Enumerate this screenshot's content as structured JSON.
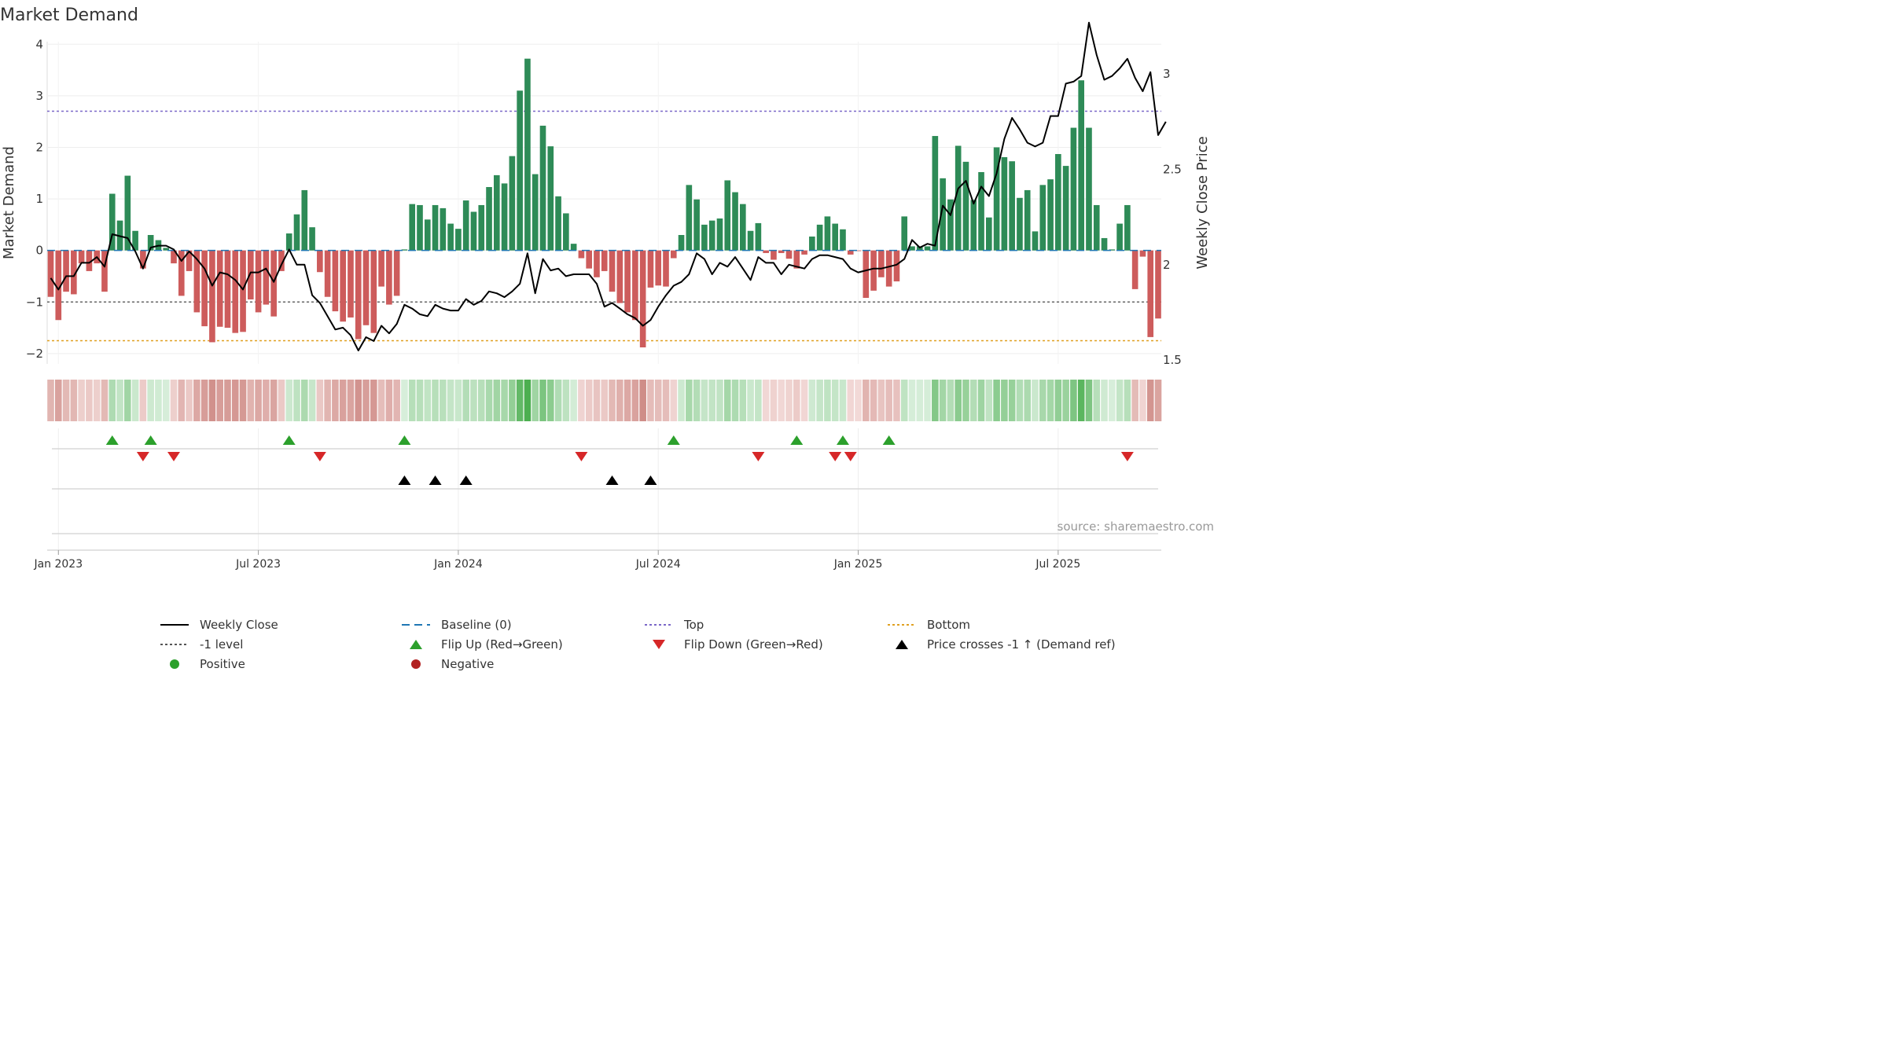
{
  "chart_data": {
    "type": "bar",
    "title": "Market Demand",
    "ylabel": "Market Demand",
    "y2label": "Weekly Close Price",
    "ylim": [
      -2.2,
      4.05
    ],
    "y2lim": [
      1.48,
      3.17
    ],
    "yticks": [
      4,
      3,
      2,
      1,
      0,
      -1,
      -2
    ],
    "ytick_labels": [
      "4",
      "3",
      "2",
      "1",
      "0",
      "−1",
      "−2"
    ],
    "y2ticks": [
      3,
      2.5,
      2,
      1.5
    ],
    "y2tick_labels": [
      "3",
      "2.5",
      "2",
      "1.5"
    ],
    "x_ticks": [
      {
        "label": "Jan 2023",
        "week": 1
      },
      {
        "label": "Jul 2023",
        "week": 27
      },
      {
        "label": "Jan 2024",
        "week": 53
      },
      {
        "label": "Jul 2024",
        "week": 79
      },
      {
        "label": "Jan 2025",
        "week": 105
      },
      {
        "label": "Jul 2025",
        "week": 131
      }
    ],
    "levels": {
      "top": 2.7,
      "minus_one": -1,
      "bottom": -1.75,
      "baseline": 0
    },
    "demand": [
      -0.9,
      -1.35,
      -0.8,
      -0.85,
      -0.25,
      -0.4,
      -0.25,
      -0.8,
      1.1,
      0.58,
      1.45,
      0.38,
      -0.35,
      0.3,
      0.2,
      0.05,
      -0.25,
      -0.88,
      -0.4,
      -1.2,
      -1.47,
      -1.78,
      -1.48,
      -1.5,
      -1.6,
      -1.58,
      -0.95,
      -1.2,
      -1.05,
      -1.28,
      -0.4,
      0.33,
      0.7,
      1.17,
      0.45,
      -0.42,
      -0.9,
      -1.18,
      -1.38,
      -1.3,
      -1.72,
      -1.45,
      -1.6,
      -0.7,
      -1.05,
      -0.88,
      0.02,
      0.9,
      0.88,
      0.6,
      0.88,
      0.82,
      0.52,
      0.42,
      0.97,
      0.75,
      0.88,
      1.23,
      1.46,
      1.3,
      1.83,
      3.1,
      3.72,
      1.48,
      2.42,
      2.02,
      1.05,
      0.72,
      0.13,
      -0.15,
      -0.35,
      -0.52,
      -0.4,
      -0.8,
      -1.02,
      -1.2,
      -1.35,
      -1.88,
      -0.72,
      -0.68,
      -0.7,
      -0.15,
      0.3,
      1.27,
      0.99,
      0.5,
      0.58,
      0.62,
      1.36,
      1.13,
      0.9,
      0.38,
      0.53,
      -0.05,
      -0.18,
      -0.05,
      -0.16,
      -0.35,
      -0.08,
      0.27,
      0.5,
      0.66,
      0.52,
      0.41,
      -0.08,
      -0.01,
      -0.92,
      -0.78,
      -0.52,
      -0.7,
      -0.6,
      0.66,
      0.08,
      0.08,
      0.08,
      2.22,
      1.4,
      0.99,
      2.03,
      1.72,
      0.98,
      1.52,
      0.64,
      2.0,
      1.81,
      1.73,
      1.02,
      1.17,
      0.37,
      1.27,
      1.38,
      1.87,
      1.64,
      2.38,
      3.3,
      2.38,
      0.88,
      0.24,
      0.02,
      0.52,
      0.88,
      -0.75,
      -0.12,
      -1.68,
      -1.32
    ],
    "weekly_close": [
      1.93,
      1.87,
      1.94,
      1.94,
      2.01,
      2.01,
      2.04,
      1.99,
      2.16,
      2.15,
      2.14,
      2.07,
      1.98,
      2.09,
      2.1,
      2.1,
      2.08,
      2.02,
      2.07,
      2.03,
      1.98,
      1.89,
      1.96,
      1.95,
      1.92,
      1.87,
      1.96,
      1.96,
      1.98,
      1.91,
      2.0,
      2.08,
      2.0,
      2.0,
      1.84,
      1.8,
      1.73,
      1.66,
      1.67,
      1.63,
      1.55,
      1.62,
      1.6,
      1.68,
      1.64,
      1.69,
      1.79,
      1.77,
      1.74,
      1.73,
      1.79,
      1.77,
      1.76,
      1.76,
      1.82,
      1.79,
      1.81,
      1.86,
      1.85,
      1.83,
      1.86,
      1.9,
      2.06,
      1.85,
      2.03,
      1.97,
      1.98,
      1.94,
      1.95,
      1.95,
      1.95,
      1.9,
      1.78,
      1.8,
      1.77,
      1.74,
      1.72,
      1.68,
      1.71,
      1.78,
      1.84,
      1.89,
      1.91,
      1.95,
      2.06,
      2.03,
      1.95,
      2.01,
      1.99,
      2.04,
      1.98,
      1.92,
      2.04,
      2.01,
      2.01,
      1.95,
      2.0,
      1.99,
      1.98,
      2.03,
      2.05,
      2.05,
      2.04,
      2.03,
      1.98,
      1.96,
      1.97,
      1.98,
      1.98,
      1.99,
      2.0,
      2.03,
      2.13,
      2.09,
      2.11,
      2.1,
      2.31,
      2.26,
      2.4,
      2.44,
      2.32,
      2.41,
      2.36,
      2.48,
      2.66,
      2.77,
      2.71,
      2.64,
      2.62,
      2.64,
      2.78,
      2.78,
      2.95,
      2.96,
      2.99,
      3.27,
      3.1,
      2.97,
      2.99,
      3.03,
      3.08,
      2.98,
      2.91,
      3.01,
      2.68,
      2.75
    ],
    "flip_up_weeks": [
      8,
      13,
      31,
      46,
      81,
      97,
      103,
      109
    ],
    "flip_down_weeks": [
      12,
      16,
      35,
      69,
      92,
      102,
      104,
      140
    ],
    "price_cross_weeks": [
      46,
      50,
      54,
      73,
      78
    ],
    "legend": [
      {
        "label": "Weekly Close",
        "marker": "line-solid",
        "color": "#000000"
      },
      {
        "label": "Baseline (0)",
        "marker": "line-dashed",
        "color": "#1f77b4"
      },
      {
        "label": "Top",
        "marker": "line-dotted",
        "color": "#7b68c8"
      },
      {
        "label": "Bottom",
        "marker": "line-dotted",
        "color": "#e0a020"
      },
      {
        "label": "-1 level",
        "marker": "line-dotted",
        "color": "#555555"
      },
      {
        "label": "Flip Up (Red→Green)",
        "marker": "triangle-up",
        "color": "#2ca02c"
      },
      {
        "label": "Flip Down (Green→Red)",
        "marker": "triangle-down",
        "color": "#d62728"
      },
      {
        "label": "Price crosses -1 ↑ (Demand ref)",
        "marker": "triangle-up",
        "color": "#000000"
      },
      {
        "label": "Positive",
        "marker": "circle",
        "color": "#2ca02c"
      },
      {
        "label": "Negative",
        "marker": "circle",
        "color": "#b22222"
      }
    ],
    "source": "source: sharemaestro.com"
  },
  "colors": {
    "positive_bar": "#2e8b57",
    "negative_bar": "#cd5c5c",
    "price_line": "#000000"
  }
}
